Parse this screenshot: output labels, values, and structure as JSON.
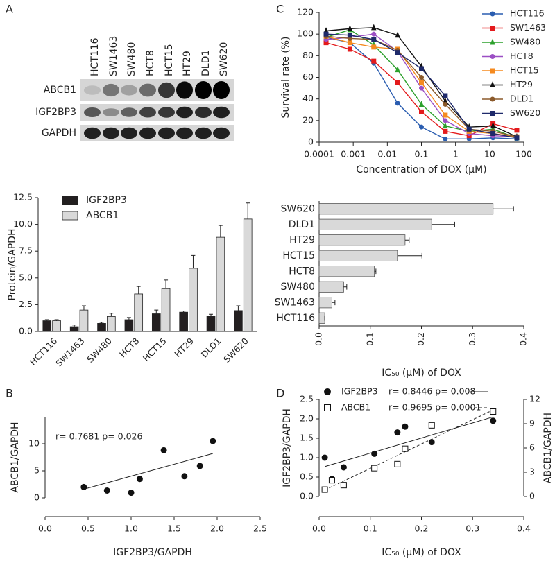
{
  "panel_labels": [
    "A",
    "B",
    "C",
    "D"
  ],
  "blot": {
    "lanes": [
      "HCT116",
      "SW1463",
      "SW480",
      "HCT8",
      "HCT15",
      "HT29",
      "DLD1",
      "SW620"
    ],
    "rows": [
      "ABCB1",
      "IGF2BP3",
      "GAPDH"
    ]
  },
  "chart_data": [
    {
      "type": "bar",
      "ylabel": "Protein/GAPDH",
      "categories": [
        "HCT116",
        "SW1463",
        "SW480",
        "HCT8",
        "HCT15",
        "HT29",
        "DLD1",
        "SW620"
      ],
      "series": [
        {
          "name": "IGF2BP3",
          "color": "#231f20",
          "values": [
            1.0,
            0.45,
            0.75,
            1.1,
            1.65,
            1.8,
            1.4,
            1.95
          ],
          "errors": [
            0.1,
            0.15,
            0.1,
            0.2,
            0.35,
            0.1,
            0.2,
            0.45
          ]
        },
        {
          "name": "ABCB1",
          "color": "#d9d9d9",
          "values": [
            1.0,
            2.0,
            1.4,
            3.5,
            4.0,
            5.9,
            8.8,
            10.5
          ],
          "errors": [
            0.1,
            0.4,
            0.3,
            0.7,
            0.8,
            1.2,
            1.1,
            1.5
          ]
        }
      ],
      "ylim": [
        0,
        12.5
      ],
      "yticks": [
        {
          "value": 0,
          "label": "0.0"
        },
        2.5,
        {
          "value": 5,
          "label": "5.0"
        },
        7.5,
        {
          "value": 10,
          "label": "10.0"
        },
        12.5
      ],
      "legend": "top-left"
    },
    {
      "type": "line",
      "xscale": "log",
      "xlabel": "Concentration of DOX (μM)",
      "ylabel": "Survival rate (%)",
      "x": [
        0.00016,
        0.0008,
        0.004,
        0.02,
        0.1,
        0.5,
        2.5,
        12.5,
        62.5
      ],
      "series": [
        {
          "name": "HCT116",
          "color": "#2a5db0",
          "marker": "circle",
          "values": [
            97,
            92,
            73,
            36,
            14,
            3,
            3,
            4,
            3
          ]
        },
        {
          "name": "SW1463",
          "color": "#e41a1c",
          "marker": "square",
          "values": [
            92,
            86,
            75,
            55,
            28,
            10,
            6,
            17,
            11
          ]
        },
        {
          "name": "SW480",
          "color": "#2ca02c",
          "marker": "triangle",
          "values": [
            97,
            104,
            90,
            67,
            35,
            15,
            10,
            12,
            4
          ]
        },
        {
          "name": "HCT8",
          "color": "#9b4fc4",
          "marker": "circle",
          "values": [
            95,
            97,
            100,
            84,
            50,
            20,
            8,
            6,
            5
          ]
        },
        {
          "name": "HCT15",
          "color": "#f58a1f",
          "marker": "square",
          "values": [
            98,
            92,
            88,
            86,
            55,
            25,
            10,
            8,
            5
          ]
        },
        {
          "name": "HT29",
          "color": "#111111",
          "marker": "triangle",
          "values": [
            103,
            105,
            106,
            99,
            70,
            38,
            14,
            15,
            5
          ]
        },
        {
          "name": "DLD1",
          "color": "#8b5a2b",
          "marker": "circle",
          "values": [
            98,
            96,
            95,
            85,
            60,
            35,
            12,
            10,
            5
          ]
        },
        {
          "name": "SW620",
          "color": "#1f2a6b",
          "marker": "square",
          "values": [
            100,
            99,
            95,
            83,
            68,
            43,
            12,
            8,
            4
          ]
        }
      ],
      "xlim": [
        0.0001,
        100
      ],
      "xticks": [
        0.0001,
        0.001,
        0.01,
        0.1,
        1,
        10,
        100
      ],
      "ylim": [
        0,
        120
      ],
      "yticks": [
        0,
        20,
        40,
        60,
        80,
        100,
        120
      ],
      "legend": "top-right"
    },
    {
      "type": "hbar",
      "xlabel": "IC₅₀ (μM) of DOX",
      "categories": [
        "SW620",
        "DLD1",
        "HT29",
        "HCT15",
        "HCT8",
        "SW480",
        "SW1463",
        "HCT116"
      ],
      "values": [
        0.34,
        0.22,
        0.168,
        0.153,
        0.108,
        0.048,
        0.025,
        0.011
      ],
      "errors": [
        0.04,
        0.045,
        0.008,
        0.048,
        0.003,
        0.006,
        0.006,
        0.0
      ],
      "color": "#d9d9d9",
      "xlim": [
        0,
        0.4
      ],
      "xticks": [
        {
          "value": 0,
          "label": "0.0"
        },
        0.1,
        0.2,
        0.3,
        0.4
      ]
    },
    {
      "type": "scatter",
      "xlabel": "IGF2BP3/GAPDH",
      "ylabel": "ABCB1/GAPDH",
      "annotation": "r= 0.7681  p= 0.026",
      "series": [
        {
          "color": "#111111",
          "marker": "circle",
          "line": "solid",
          "x": [
            0.45,
            0.72,
            1.0,
            1.1,
            1.38,
            1.62,
            1.8,
            1.95
          ],
          "values": [
            2.0,
            1.35,
            0.95,
            3.5,
            8.8,
            4.0,
            5.9,
            10.5
          ],
          "fit": {
            "x": [
              0.45,
              1.95
            ],
            "y": [
              1.6,
              8.2
            ]
          }
        }
      ],
      "xlim": [
        0,
        2.5
      ],
      "xticks": [
        {
          "value": 0,
          "label": "0.0"
        },
        0.5,
        {
          "value": 1,
          "label": "1.0"
        },
        1.5,
        {
          "value": 2,
          "label": "2.0"
        },
        2.5
      ],
      "ylim": [
        0,
        15
      ],
      "yticks": [
        0,
        5,
        10
      ]
    },
    {
      "type": "scatter",
      "xlabel": "IC₅₀ (μM) of DOX",
      "ylabel": "IGF2BP3/GAPDH",
      "y2label": "ABCB1/GAPDH",
      "series": [
        {
          "name": "IGF2BP3",
          "stats": "r= 0.8446 p= 0.008",
          "color": "#111111",
          "marker": "circle",
          "line": "solid",
          "x": [
            0.011,
            0.025,
            0.048,
            0.108,
            0.153,
            0.168,
            0.22,
            0.34
          ],
          "values": [
            1.0,
            0.45,
            0.75,
            1.1,
            1.65,
            1.8,
            1.4,
            1.95
          ],
          "fit": {
            "x": [
              0.011,
              0.34
            ],
            "y": [
              0.77,
              2.05
            ]
          }
        },
        {
          "name": "ABCB1",
          "stats": "r= 0.9695 p= 0.0001",
          "axis": "y2",
          "color": "#111111",
          "marker": "square",
          "line": "dashed",
          "x": [
            0.011,
            0.025,
            0.048,
            0.108,
            0.153,
            0.168,
            0.22,
            0.34
          ],
          "values": [
            0.85,
            2.0,
            1.4,
            3.5,
            4.0,
            5.9,
            8.8,
            10.5
          ],
          "fit": {
            "x": [
              0.011,
              0.34
            ],
            "y": [
              0.8,
              10.7
            ]
          }
        }
      ],
      "xlim": [
        0,
        0.4
      ],
      "xticks": [
        {
          "value": 0,
          "label": "0.0"
        },
        0.1,
        0.2,
        0.3,
        0.4
      ],
      "ylim": [
        0,
        2.5
      ],
      "yticks": [
        {
          "value": 0,
          "label": "0.0"
        },
        0.5,
        {
          "value": 1,
          "label": "1.0"
        },
        1.5,
        {
          "value": 2,
          "label": "2.0"
        },
        2.5
      ],
      "y2lim": [
        0,
        12
      ],
      "y2ticks": [
        0,
        3,
        6,
        9,
        12
      ],
      "legend": "top-left"
    }
  ]
}
